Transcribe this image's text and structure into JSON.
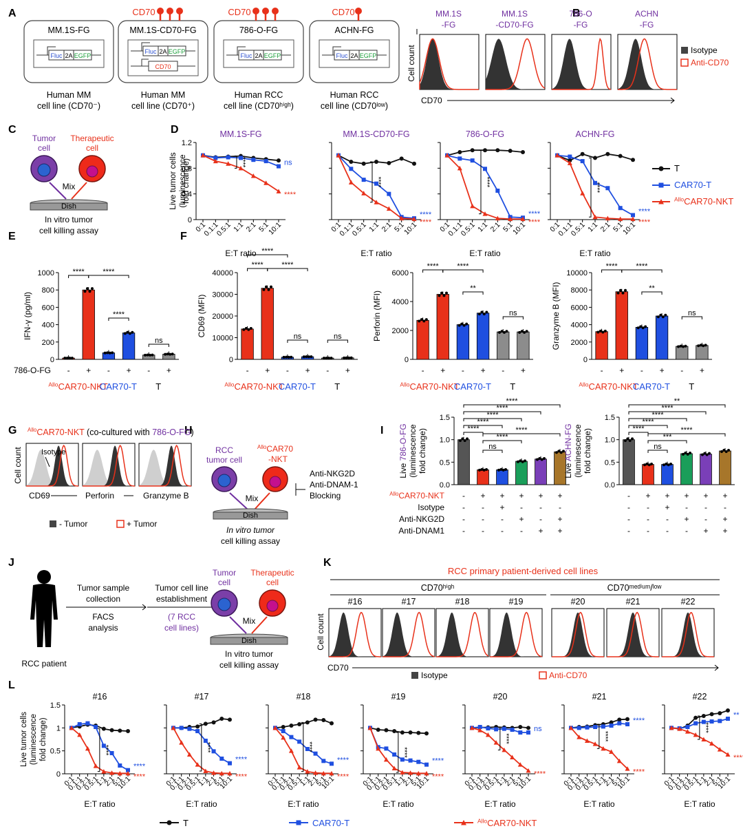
{
  "panel_letters": [
    "A",
    "B",
    "C",
    "D",
    "E",
    "F",
    "G",
    "H",
    "I",
    "J",
    "K",
    "L"
  ],
  "colors": {
    "T": "#111111",
    "CAR": "#1f4fe0",
    "NKT": "#e8311a",
    "gray": "#8c8c8c",
    "purple": "#7030a0",
    "red": "#e8311a",
    "blue": "#1f4fe0"
  },
  "panelA": {
    "cells": [
      {
        "title": "MM.1S-FG",
        "cd70_label": "",
        "bottom1": "Human MM",
        "bottom2": "cell line (CD70⁻)"
      },
      {
        "title": "MM.1S-CD70-FG",
        "cd70_label": "CD70",
        "bottom1": "Human MM",
        "bottom2": "cell line (CD70⁺)"
      },
      {
        "title": "786-O-FG",
        "cd70_label": "CD70",
        "bottom1": "Human RCC",
        "bottom2": "cell line (CD70ʰⁱᵍʰ)"
      },
      {
        "title": "ACHN-FG",
        "cd70_label": "CD70",
        "bottom1": "Human RCC",
        "bottom2": "cell line (CD70ˡᵒʷ)"
      }
    ],
    "construct": {
      "fluc": "Fluc",
      "p2a": "2A",
      "egfp": "EGFP",
      "cd70": "CD70"
    }
  },
  "panelB": {
    "labels": [
      "MM.1S",
      "-FG",
      "MM.1S",
      "-CD70-FG",
      "786-O",
      "-FG",
      "ACHN",
      "-FG"
    ],
    "ylabel": "Cell count",
    "xlabel": "CD70",
    "legend": [
      "Isotype",
      "Anti-CD70"
    ]
  },
  "panelC": {
    "tumor1": "Tumor",
    "tumor2": "cell",
    "ther1": "Therapeutic",
    "ther2": "cell",
    "mix": "Mix",
    "dish": "Dish",
    "cap1": "In vitro tumor",
    "cap2": "cell killing assay"
  },
  "panelD": {
    "ylabel1": "Live tumor cells",
    "ylabel2": "(luminescence",
    "ylabel3": "fold change)",
    "xlabel": "E:T ratio",
    "legend": [
      "T",
      "CAR70-T",
      "AlloCAR70-NKT"
    ]
  },
  "panelE": {
    "ylabel": "IFN-γ (pg/ml)",
    "row_label": "786-O-FG"
  },
  "panelF": {
    "ylabels": [
      "CD69 (MFI)",
      "Perforin (MFI)",
      "Granzyme B (MFI)"
    ]
  },
  "groups_label": {
    "nkt_sup": "Allo",
    "nkt": "CAR70-NKT",
    "car": "CAR70-T",
    "t": "T"
  },
  "panelG": {
    "title_sup": "Allo",
    "title": "CAR70-NKT (co-cultured with ",
    "title_cell": "786-O-FG",
    ")": ")",
    "isotype": "Isotype",
    "ylabel": "Cell count",
    "xlabels": [
      "CD69",
      "Perforin",
      "Granzyme B"
    ],
    "legend": [
      "- Tumor",
      "+ Tumor"
    ]
  },
  "panelH": {
    "rcc1": "RCC",
    "rcc2": "tumor cell",
    "nkt_sup": "Allo",
    "nkt1": "CAR70",
    "nkt2": "-NKT",
    "mix": "Mix",
    "dish": "Dish",
    "block1": "Anti-NKG2D",
    "block2": "Anti-DNAM-1",
    "block3": "Blocking",
    "cap1": "In vitro tumor",
    "cap2": "cell killing assay"
  },
  "panelI": {
    "ylabel_pre": "Live ",
    "ylabels_cell": [
      "786-O-FG",
      "ACHN-FG"
    ],
    "ylabel2": "(luminescence",
    "ylabel3": "fold change)",
    "row_labels": [
      "CAR70-NKT",
      "Isotype",
      "Anti-NKG2D",
      "Anti-DNAM1"
    ],
    "signs": [
      [
        "-",
        "+",
        "+",
        "+",
        "+",
        "+"
      ],
      [
        "-",
        "-",
        "+",
        "-",
        "-",
        "-"
      ],
      [
        "-",
        "-",
        "-",
        "+",
        "-",
        "+"
      ],
      [
        "-",
        "-",
        "-",
        "-",
        "+",
        "+"
      ]
    ]
  },
  "panelJ": {
    "step1a": "Tumor sample",
    "step1b": "collection",
    "step1c": "FACS",
    "step1d": "analysis",
    "step2a": "Tumor cell line",
    "step2b": "establishment",
    "step2c": "(7 RCC",
    "step2d": "cell lines)",
    "tumor1": "Tumor",
    "tumor2": "cell",
    "ther1": "Therapeutic",
    "ther2": "cell",
    "mix": "Mix",
    "dish": "Dish",
    "cap1": "In vitro tumor",
    "cap2": "cell killing assay",
    "patient": "RCC patient"
  },
  "panelK": {
    "title": "RCC primary patient-derived cell lines",
    "group_high": "CD70ʰⁱᵍʰ",
    "group_low": "CD70ᵐᵉᵈⁱᵘᵐ/ˡᵒʷ",
    "ids": [
      "#16",
      "#17",
      "#18",
      "#19",
      "#20",
      "#21",
      "#22"
    ],
    "ylabel": "Cell count",
    "xlabel": "CD70",
    "legend": [
      "Isotype",
      "Anti-CD70"
    ]
  },
  "panelL": {
    "ylabel1": "Live tumor cells",
    "ylabel2": "(luminescence",
    "ylabel3": "fold change)",
    "xlabel": "E:T ratio",
    "legend": [
      "T",
      "CAR70-T",
      "AlloCAR70-NKT"
    ]
  },
  "chart_data": [
    {
      "panel": "D",
      "type": "line",
      "x": [
        "0:1",
        "0.1:1",
        "0.5:1",
        "1:1",
        "2:1",
        "5:1",
        "10:1"
      ],
      "ylim": [
        0,
        1.2
      ],
      "yticks": [
        0,
        0.4,
        0.8,
        1.2
      ],
      "subplots": [
        {
          "title": "MM.1S-FG",
          "series": [
            {
              "name": "T",
              "values": [
                1.0,
                0.97,
                0.98,
                0.99,
                0.96,
                0.94,
                0.92
              ]
            },
            {
              "name": "CAR70-T",
              "values": [
                1.0,
                0.96,
                0.97,
                0.96,
                0.93,
                0.91,
                0.83
              ]
            },
            {
              "name": "AlloCAR70-NKT",
              "values": [
                1.0,
                0.91,
                0.87,
                0.8,
                0.68,
                0.57,
                0.44
              ]
            }
          ],
          "stats": [
            "ns",
            "****",
            "****"
          ]
        },
        {
          "title": "MM.1S-CD70-FG",
          "series": [
            {
              "name": "T",
              "values": [
                1.0,
                0.9,
                0.87,
                0.9,
                0.88,
                0.95,
                0.87
              ]
            },
            {
              "name": "CAR70-T",
              "values": [
                1.0,
                0.79,
                0.62,
                0.56,
                0.4,
                0.04,
                0.02
              ]
            },
            {
              "name": "AlloCAR70-NKT",
              "values": [
                1.0,
                0.58,
                0.41,
                0.27,
                0.17,
                0.02,
                0.01
              ]
            }
          ],
          "stats": [
            "****",
            "****",
            "****"
          ]
        },
        {
          "title": "786-O-FG",
          "series": [
            {
              "name": "T",
              "values": [
                1.0,
                1.05,
                1.08,
                1.08,
                1.08,
                1.07,
                1.05
              ]
            },
            {
              "name": "CAR70-T",
              "values": [
                1.0,
                0.95,
                0.92,
                0.79,
                0.45,
                0.04,
                0.03
              ]
            },
            {
              "name": "AlloCAR70-NKT",
              "values": [
                1.0,
                0.8,
                0.21,
                0.09,
                0.02,
                0.01,
                0.01
              ]
            }
          ],
          "stats": [
            "****",
            "****",
            "****"
          ]
        },
        {
          "title": "ACHN-FG",
          "series": [
            {
              "name": "T",
              "values": [
                1.0,
                0.92,
                1.02,
                0.96,
                1.02,
                0.99,
                0.93
              ]
            },
            {
              "name": "CAR70-T",
              "values": [
                1.0,
                0.98,
                0.91,
                0.57,
                0.49,
                0.18,
                0.07
              ]
            },
            {
              "name": "AlloCAR70-NKT",
              "values": [
                1.0,
                0.88,
                0.41,
                0.04,
                0.02,
                0.01,
                0.01
              ]
            }
          ],
          "stats": [
            "****",
            "****",
            "****"
          ]
        }
      ]
    },
    {
      "panel": "E",
      "type": "bar",
      "title": "",
      "ylabel": "IFN-γ (pg/ml)",
      "ylim": [
        0,
        1000
      ],
      "yticks": [
        0,
        200,
        400,
        600,
        800,
        1000
      ],
      "categories": [
        "AlloCAR70-NKT -",
        "AlloCAR70-NKT +",
        "CAR70-T -",
        "CAR70-T +",
        "T -",
        "T +"
      ],
      "values": [
        15,
        800,
        75,
        305,
        50,
        60
      ],
      "stats": [
        "****",
        "****",
        "****",
        "ns"
      ]
    },
    {
      "panel": "F",
      "type": "bar",
      "ylabel": "CD69 (MFI)",
      "ylim": [
        0,
        40000
      ],
      "yticks": [
        0,
        10000,
        20000,
        30000,
        40000
      ],
      "categories": [
        "AlloCAR70-NKT -",
        "AlloCAR70-NKT +",
        "CAR70-T -",
        "CAR70-T +",
        "T -",
        "T +"
      ],
      "values": [
        14000,
        32800,
        1000,
        1200,
        600,
        700
      ],
      "stats": [
        "****",
        "****",
        "****",
        "ns",
        "ns"
      ]
    },
    {
      "panel": "F2",
      "type": "bar",
      "ylabel": "Perforin (MFI)",
      "ylim": [
        0,
        6000
      ],
      "yticks": [
        0,
        2000,
        4000,
        6000
      ],
      "categories": [
        "AlloCAR70-NKT -",
        "AlloCAR70-NKT +",
        "CAR70-T -",
        "CAR70-T +",
        "T -",
        "T +"
      ],
      "values": [
        2700,
        4500,
        2400,
        3200,
        1900,
        1900
      ],
      "stats": [
        "****",
        "****",
        "**",
        "ns"
      ]
    },
    {
      "panel": "F3",
      "type": "bar",
      "ylabel": "Granzyme B (MFI)",
      "ylim": [
        0,
        10000
      ],
      "yticks": [
        0,
        2000,
        4000,
        6000,
        8000,
        10000
      ],
      "categories": [
        "AlloCAR70-NKT -",
        "AlloCAR70-NKT +",
        "CAR70-T -",
        "CAR70-T +",
        "T -",
        "T +"
      ],
      "values": [
        3200,
        7800,
        3700,
        5000,
        1500,
        1600
      ],
      "stats": [
        "****",
        "****",
        "**",
        "ns"
      ]
    },
    {
      "panel": "I1",
      "type": "bar",
      "ylabel": "Live 786-O-FG (luminescence fold change)",
      "ylim": [
        0,
        1.5
      ],
      "yticks": [
        0,
        0.5,
        1.0,
        1.5
      ],
      "values": [
        1.0,
        0.33,
        0.33,
        0.52,
        0.57,
        0.73
      ],
      "stats": [
        "****",
        "****",
        "****",
        "****",
        "****",
        "ns",
        "****",
        "****"
      ]
    },
    {
      "panel": "I2",
      "type": "bar",
      "ylabel": "Live ACHN-FG (luminescence fold change)",
      "ylim": [
        0,
        1.5
      ],
      "yticks": [
        0,
        0.5,
        1.0,
        1.5
      ],
      "values": [
        1.0,
        0.45,
        0.45,
        0.69,
        0.68,
        0.75
      ],
      "stats": [
        "**",
        "****",
        "****",
        "****",
        "****",
        "ns",
        "***",
        "****"
      ]
    },
    {
      "panel": "L",
      "type": "line",
      "x": [
        "0:1",
        "0.1:1",
        "0.2:1",
        "0.5:1",
        "1:1",
        "2:1",
        "5:1",
        "10:1"
      ],
      "ylim": [
        0,
        1.5
      ],
      "yticks": [
        0,
        0.5,
        1.0,
        1.5
      ],
      "subplots": [
        {
          "title": "#16",
          "series": [
            {
              "name": "T",
              "values": [
                1.0,
                1.03,
                1.07,
                1.05,
                0.98,
                0.95,
                0.94,
                0.93
              ]
            },
            {
              "name": "CAR70-T",
              "values": [
                1.0,
                1.08,
                1.1,
                1.02,
                0.61,
                0.45,
                0.18,
                0.08
              ]
            },
            {
              "name": "AlloCAR70-NKT",
              "values": [
                1.0,
                0.85,
                0.55,
                0.17,
                0.05,
                0.02,
                0.01,
                0.01
              ]
            }
          ],
          "stats": [
            "****",
            "****",
            "****"
          ]
        },
        {
          "title": "#17",
          "series": [
            {
              "name": "T",
              "values": [
                1.0,
                1.0,
                1.02,
                1.03,
                1.09,
                1.12,
                1.2,
                1.18
              ]
            },
            {
              "name": "CAR70-T",
              "values": [
                1.0,
                1.0,
                0.98,
                0.93,
                0.72,
                0.49,
                0.33,
                0.23
              ]
            },
            {
              "name": "AlloCAR70-NKT",
              "values": [
                1.0,
                0.68,
                0.42,
                0.2,
                0.06,
                0.02,
                0.01,
                0.01
              ]
            }
          ],
          "stats": [
            "****",
            "****",
            "****"
          ]
        },
        {
          "title": "#18",
          "series": [
            {
              "name": "T",
              "values": [
                1.0,
                1.02,
                1.05,
                1.08,
                1.12,
                1.18,
                1.17,
                1.1
              ]
            },
            {
              "name": "CAR70-T",
              "values": [
                1.0,
                0.93,
                0.8,
                0.7,
                0.54,
                0.44,
                0.28,
                0.22
              ]
            },
            {
              "name": "AlloCAR70-NKT",
              "values": [
                1.0,
                0.79,
                0.5,
                0.14,
                0.05,
                0.02,
                0.01,
                0.01
              ]
            }
          ],
          "stats": [
            "****",
            "****",
            "****"
          ]
        },
        {
          "title": "#19",
          "series": [
            {
              "name": "T",
              "values": [
                1.0,
                0.96,
                0.95,
                0.93,
                0.9,
                0.9,
                0.89,
                0.88
              ]
            },
            {
              "name": "CAR70-T",
              "values": [
                1.0,
                0.58,
                0.55,
                0.42,
                0.31,
                0.29,
                0.26,
                0.2
              ]
            },
            {
              "name": "AlloCAR70-NKT",
              "values": [
                1.0,
                0.55,
                0.31,
                0.12,
                0.03,
                0.02,
                0.01,
                0.01
              ]
            }
          ],
          "stats": [
            "****",
            "****",
            "****"
          ]
        },
        {
          "title": "#20",
          "series": [
            {
              "name": "T",
              "values": [
                1.0,
                1.01,
                1.01,
                1.02,
                1.01,
                1.0,
                1.02,
                1.0
              ]
            },
            {
              "name": "CAR70-T",
              "values": [
                1.0,
                1.02,
                0.99,
                0.97,
                0.98,
                0.96,
                0.9,
                0.9
              ]
            },
            {
              "name": "AlloCAR70-NKT",
              "values": [
                1.0,
                0.95,
                0.85,
                0.68,
                0.52,
                0.36,
                0.2,
                0.07
              ]
            }
          ],
          "stats": [
            "ns",
            "****",
            "****"
          ]
        },
        {
          "title": "#21",
          "series": [
            {
              "name": "T",
              "values": [
                1.0,
                1.02,
                1.03,
                1.06,
                1.08,
                1.12,
                1.18,
                1.19
              ]
            },
            {
              "name": "CAR70-T",
              "values": [
                1.0,
                1.0,
                1.01,
                1.02,
                1.03,
                1.05,
                1.1,
                1.08
              ]
            },
            {
              "name": "AlloCAR70-NKT",
              "values": [
                1.0,
                0.8,
                0.72,
                0.65,
                0.55,
                0.48,
                0.28,
                0.11
              ]
            }
          ],
          "stats": [
            "****",
            "****",
            "****"
          ]
        },
        {
          "title": "#22",
          "series": [
            {
              "name": "T",
              "values": [
                1.0,
                0.98,
                1.05,
                1.22,
                1.26,
                1.3,
                1.32,
                1.38
              ]
            },
            {
              "name": "CAR70-T",
              "values": [
                1.0,
                0.99,
                1.02,
                1.1,
                1.13,
                1.14,
                1.15,
                1.2
              ]
            },
            {
              "name": "AlloCAR70-NKT",
              "values": [
                1.0,
                0.98,
                0.92,
                0.85,
                0.75,
                0.66,
                0.53,
                0.42
              ]
            }
          ],
          "stats": [
            "**",
            "****",
            "****"
          ]
        }
      ]
    }
  ]
}
